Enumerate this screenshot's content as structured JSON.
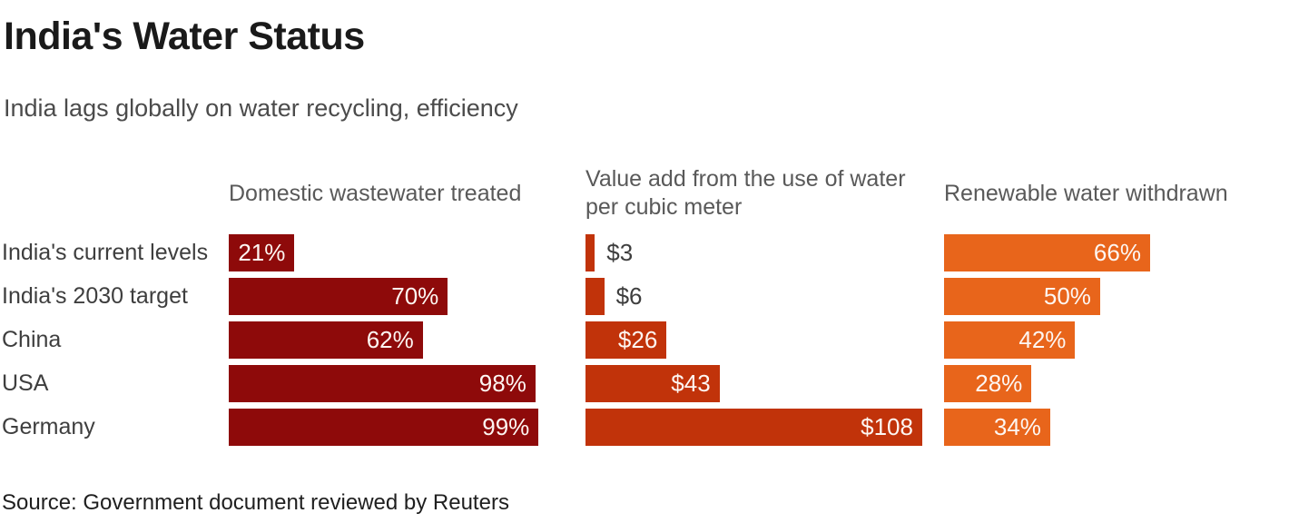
{
  "title": "India's Water Status",
  "subtitle": "India lags globally on water recycling, efficiency",
  "source": "Source: Government document reviewed by Reuters",
  "chart_data": {
    "type": "bar",
    "orientation": "horizontal",
    "grid": false,
    "legend": false,
    "categories": [
      "India's current levels",
      "India's 2030 target",
      "China",
      "USA",
      "Germany"
    ],
    "panels": [
      {
        "title": "Domestic wastewater treated",
        "unit": "percent",
        "bar_color": "#8e0a0a",
        "xlim": [
          0,
          114
        ],
        "values": [
          21,
          70,
          62,
          98,
          99
        ],
        "value_labels": [
          "21%",
          "70%",
          "62%",
          "98%",
          "99%"
        ],
        "labels_inside": [
          true,
          true,
          true,
          true,
          true
        ]
      },
      {
        "title": "Value add from the use of water per cubic meter",
        "unit": "USD per cubic meter",
        "bar_color": "#c1330a",
        "xlim": [
          0,
          115
        ],
        "values": [
          3,
          6,
          26,
          43,
          108
        ],
        "value_labels": [
          "$3",
          "$6",
          "$26",
          "$43",
          "$108"
        ],
        "labels_inside": [
          false,
          false,
          true,
          true,
          true
        ]
      },
      {
        "title": "Renewable water withdrawn",
        "unit": "percent",
        "bar_color": "#e8651b",
        "xlim": [
          0,
          110.5
        ],
        "values": [
          66,
          50,
          42,
          28,
          34
        ],
        "value_labels": [
          "66%",
          "50%",
          "42%",
          "28%",
          "34%"
        ],
        "labels_inside": [
          true,
          true,
          true,
          true,
          true
        ]
      }
    ]
  },
  "colors": {
    "background": "#ffffff",
    "title": "#1a1a1a",
    "subtitle": "#4b4b4b",
    "panel_header": "#595959",
    "row_label": "#3e3e3e",
    "value_label_inside": "#fdf6f2",
    "value_label_outside": "#3e3e3e"
  }
}
